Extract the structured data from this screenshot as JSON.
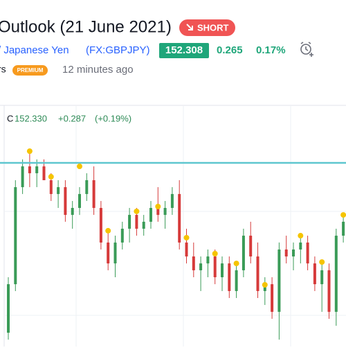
{
  "header": {
    "title": "Outlook (21 June 2021)",
    "badge": "SHORT",
    "symbol_name": "/ Japanese Yen",
    "symbol_code": "(FX:GBPJPY)",
    "price": "152.308",
    "change": "0.265",
    "change_pct": "0.17%",
    "author_suffix": "rs",
    "premium": "PREMIUM",
    "time": "12 minutes ago"
  },
  "legend": {
    "c_label": "C",
    "close": "152.330",
    "change": "+0.287",
    "change_pct": "(+0.19%)"
  },
  "chart_data": {
    "type": "candlestick",
    "ylim": [
      151.0,
      153.2
    ],
    "grid": true,
    "up_color": "#3a9b57",
    "down_color": "#d63a3a",
    "level": 152.715,
    "level_color": "#5ec6cf",
    "marker_color": "#f5c400",
    "open": [
      151.129,
      151.582,
      152.488,
      152.682,
      152.618,
      152.682,
      152.553,
      152.424,
      152.488,
      152.229,
      152.294,
      152.424,
      152.553,
      152.294,
      151.971,
      151.776,
      151.971,
      152.1,
      152.229,
      152.1,
      152.165,
      152.294,
      152.229,
      152.294,
      152.424,
      151.971,
      151.841,
      151.712,
      151.776,
      151.841,
      151.647,
      151.776,
      151.518,
      151.712,
      152.035,
      151.841,
      151.518,
      151.582,
      151.324,
      151.906,
      151.841,
      151.906,
      151.971,
      151.776,
      151.582,
      151.712,
      151.324,
      152.035
    ],
    "high": [
      151.647,
      152.553,
      152.747,
      152.812,
      152.747,
      152.747,
      152.618,
      152.553,
      152.553,
      152.359,
      152.488,
      152.618,
      152.682,
      152.359,
      152.1,
      152.035,
      152.165,
      152.294,
      152.294,
      152.229,
      152.359,
      152.488,
      152.359,
      152.488,
      152.553,
      152.1,
      151.971,
      151.841,
      151.906,
      151.906,
      151.841,
      151.841,
      151.776,
      152.1,
      152.165,
      151.971,
      151.647,
      151.647,
      151.971,
      152.035,
      151.971,
      152.035,
      152.035,
      151.841,
      151.776,
      151.776,
      152.1,
      152.229
    ],
    "low": [
      151.065,
      151.518,
      152.424,
      152.488,
      152.488,
      152.553,
      152.359,
      152.294,
      152.165,
      152.1,
      152.229,
      152.359,
      152.229,
      151.906,
      151.712,
      151.647,
      151.906,
      151.971,
      152.035,
      152.035,
      152.1,
      152.165,
      152.1,
      152.229,
      151.906,
      151.776,
      151.647,
      151.518,
      151.647,
      151.582,
      151.518,
      151.453,
      151.453,
      151.647,
      151.776,
      151.453,
      151.388,
      151.259,
      151.065,
      151.776,
      151.712,
      151.776,
      151.712,
      151.518,
      151.324,
      151.259,
      151.194,
      151.971
    ],
    "close": [
      151.582,
      152.488,
      152.682,
      152.618,
      152.682,
      152.553,
      152.424,
      152.488,
      152.229,
      152.294,
      152.424,
      152.553,
      152.294,
      151.971,
      151.776,
      151.971,
      152.1,
      152.229,
      152.1,
      152.165,
      152.294,
      152.229,
      152.294,
      152.424,
      151.971,
      151.841,
      151.712,
      151.776,
      151.841,
      151.647,
      151.776,
      151.518,
      151.712,
      152.035,
      151.841,
      151.518,
      151.582,
      151.324,
      151.906,
      151.841,
      151.906,
      151.971,
      151.776,
      151.582,
      151.712,
      151.324,
      152.035,
      152.165
    ],
    "markers": [
      null,
      null,
      null,
      152.824,
      null,
      null,
      152.585,
      null,
      null,
      null,
      152.682,
      null,
      null,
      null,
      152.081,
      null,
      null,
      null,
      152.262,
      null,
      null,
      152.307,
      null,
      null,
      null,
      152.016,
      null,
      null,
      null,
      151.867,
      null,
      null,
      151.776,
      null,
      null,
      null,
      151.576,
      null,
      null,
      null,
      null,
      152.035,
      null,
      null,
      151.789,
      null,
      null,
      152.229
    ]
  }
}
